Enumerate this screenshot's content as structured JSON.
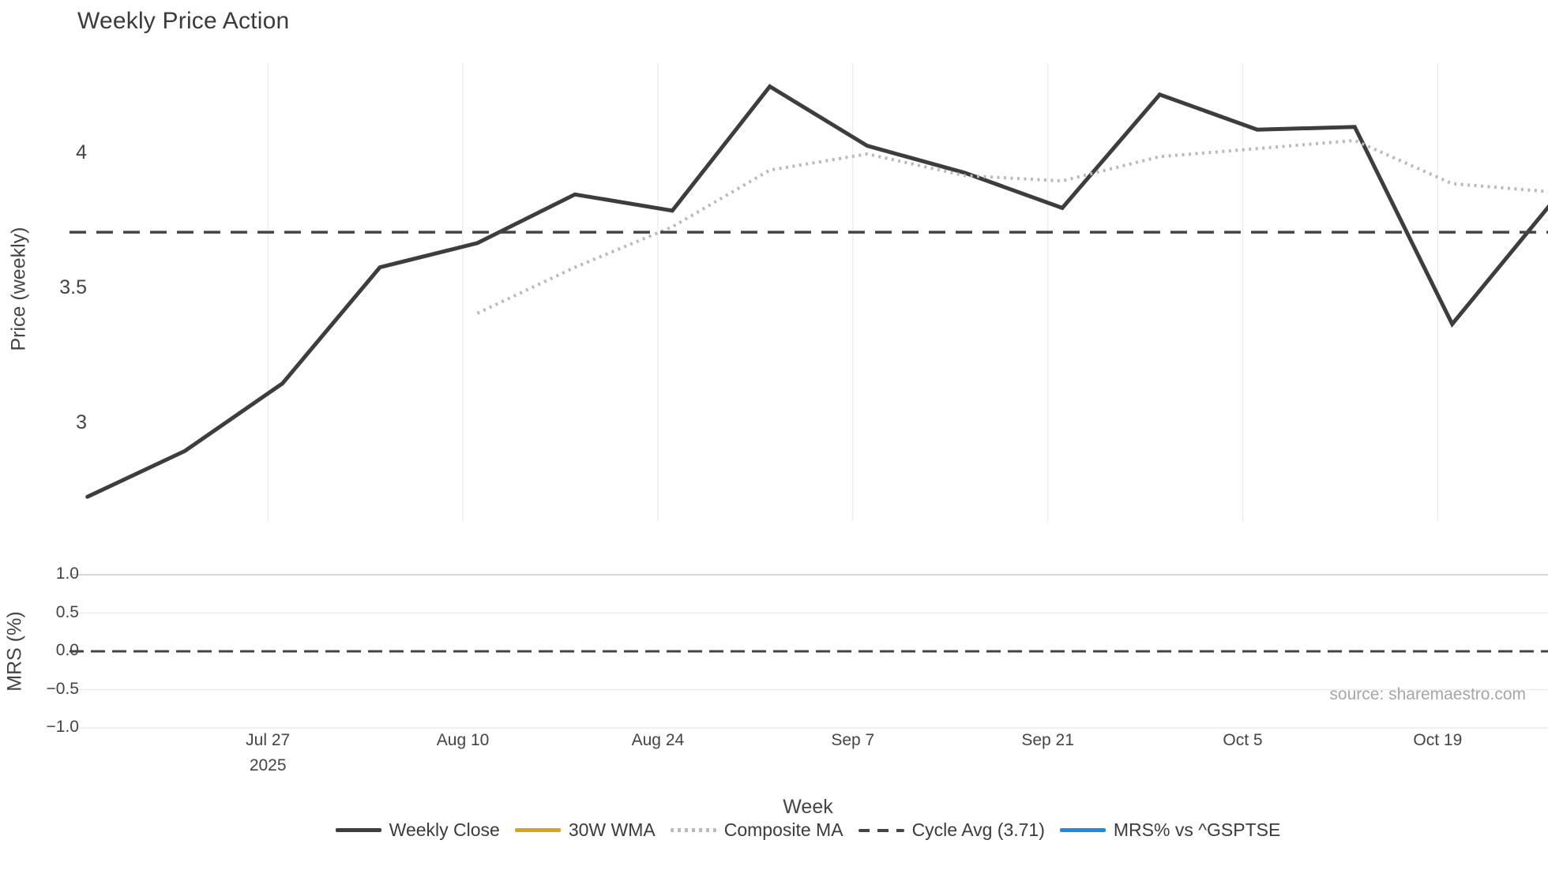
{
  "title": "Weekly Price Action",
  "source_note": "source: sharemaestro.com",
  "accent_colors": {
    "weekly_close": "#3d3d3d",
    "wma_30w": "#d9a521",
    "composite_ma": "#b9b9b9",
    "cycle_avg": "#444444",
    "mrs_line": "#1e88e5",
    "grid_light": "#e9ecf1",
    "grid_strong": "#c6c9d0",
    "tick_text": "#444444",
    "source_text": "#a6a6a6"
  },
  "chart_data": {
    "type": "line",
    "title": "Weekly Price Action",
    "xlabel": "Week",
    "x_tick_labels": [
      "Jul 27",
      "Aug 10",
      "Aug 24",
      "Sep 7",
      "Sep 21",
      "Oct 5",
      "Oct 19"
    ],
    "x_first_tick_year": "2025",
    "grid": true,
    "legend_position": "bottom",
    "source": "source: sharemaestro.com",
    "panels": [
      {
        "ylabel": "Price (weekly)",
        "y_tick_labels": [
          "4",
          "3.5",
          "3"
        ],
        "y_tick_values": [
          4,
          3.5,
          3
        ],
        "ylim": [
          2.64,
          4.34
        ],
        "series": [
          {
            "name": "Weekly Close",
            "style": "solid",
            "color": "#3d3d3d",
            "values": [
              2.73,
              2.9,
              3.15,
              3.58,
              3.67,
              3.85,
              3.79,
              4.25,
              4.03,
              3.93,
              3.8,
              4.22,
              4.09,
              4.1,
              3.37,
              3.81
            ]
          },
          {
            "name": "30W WMA",
            "style": "solid",
            "color": "#d9a521",
            "values": []
          },
          {
            "name": "Composite MA",
            "style": "dotted",
            "color": "#b9b9b9",
            "values": [
              null,
              null,
              null,
              null,
              3.41,
              3.58,
              3.73,
              3.94,
              4.0,
              3.92,
              3.9,
              3.99,
              4.02,
              4.05,
              3.89,
              3.86
            ]
          },
          {
            "name": "Cycle Avg (3.71)",
            "style": "dashed",
            "color": "#444444",
            "constant_value": 3.71
          }
        ]
      },
      {
        "ylabel": "MRS (%)",
        "y_tick_labels": [
          "1.0",
          "0.5",
          "0.0",
          "−0.5",
          "−1.0"
        ],
        "y_tick_values": [
          1.0,
          0.5,
          0.0,
          -0.5,
          -1.0
        ],
        "ylim": [
          -1.05,
          1.05
        ],
        "series": [
          {
            "name": "MRS% vs ^GSPTSE",
            "style": "solid",
            "color": "#1e88e5",
            "values": []
          },
          {
            "name": "zero-line",
            "style": "dashed",
            "color": "#444444",
            "constant_value": 0
          }
        ]
      }
    ],
    "legend": [
      {
        "id": "weekly-close",
        "label": "Weekly Close",
        "swatch": "solid",
        "color": "#3d3d3d"
      },
      {
        "id": "30w-wma",
        "label": "30W WMA",
        "swatch": "solid",
        "color": "#d9a521"
      },
      {
        "id": "composite-ma",
        "label": "Composite MA",
        "swatch": "dotted",
        "color": "#b9b9b9"
      },
      {
        "id": "cycle-avg",
        "label": "Cycle Avg (3.71)",
        "swatch": "dashed",
        "color": "#444444"
      },
      {
        "id": "mrs-vs-gsptse",
        "label": "MRS% vs ^GSPTSE",
        "swatch": "solid",
        "color": "#1e88e5"
      }
    ]
  }
}
